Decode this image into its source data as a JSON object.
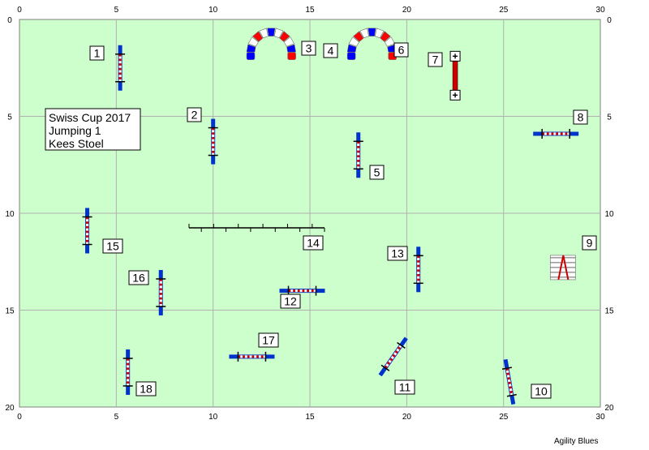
{
  "course_info": [
    "Swiss Cup 2017",
    "Jumping 1",
    "Kees Stoel"
  ],
  "credit": "Agility Blues",
  "axis_x_ticks": [
    "0",
    "5",
    "10",
    "15",
    "20",
    "25",
    "30"
  ],
  "axis_y_ticks": [
    "0",
    "5",
    "10",
    "15",
    "20"
  ],
  "colors": {
    "field": "#ccffcc",
    "grid": "#b0b0b0",
    "pole_red": "#cc0000",
    "pole_blue": "#0033cc",
    "tunnel_red": "#ff0000",
    "tunnel_blue": "#0000ff",
    "tunnel_white": "#ffffff"
  },
  "obstacles": [
    {
      "number": "1",
      "type": "jump",
      "x": 5.2,
      "y": 2.5,
      "angle": 90
    },
    {
      "number": "2",
      "type": "jump",
      "x": 10.0,
      "y": 6.3,
      "angle": 90
    },
    {
      "number": "3",
      "type": "tunnel",
      "x": 13.0,
      "y": 1.7
    },
    {
      "number": "4",
      "type": "tunnel",
      "x": 18.2,
      "y": 1.7
    },
    {
      "number": "5",
      "type": "jump",
      "x": 17.5,
      "y": 7.0,
      "angle": 90
    },
    {
      "number": "6",
      "type": "label_only"
    },
    {
      "number": "7",
      "type": "long_jump",
      "x": 22.5,
      "y": 2.9,
      "angle": 90
    },
    {
      "number": "8",
      "type": "jump",
      "x": 27.7,
      "y": 5.9,
      "angle": 0
    },
    {
      "number": "9",
      "type": "tire",
      "x": 28.0,
      "y": 12.8
    },
    {
      "number": "10",
      "type": "jump",
      "x": 25.3,
      "y": 18.7,
      "angle": 80
    },
    {
      "number": "11",
      "type": "jump",
      "x": 19.3,
      "y": 17.4,
      "angle": -55
    },
    {
      "number": "12",
      "type": "jump",
      "x": 14.6,
      "y": 14.0,
      "angle": 0
    },
    {
      "number": "13",
      "type": "jump",
      "x": 20.6,
      "y": 12.9,
      "angle": 90
    },
    {
      "number": "14",
      "type": "weave_line",
      "x": 12.3,
      "y": 10.7
    },
    {
      "number": "15",
      "type": "jump",
      "x": 3.5,
      "y": 10.9,
      "angle": 90
    },
    {
      "number": "16",
      "type": "jump",
      "x": 7.3,
      "y": 14.1,
      "angle": 90
    },
    {
      "number": "17",
      "type": "jump",
      "x": 12.0,
      "y": 17.4,
      "angle": 0
    },
    {
      "number": "18",
      "type": "jump",
      "x": 5.6,
      "y": 18.2,
      "angle": 90
    }
  ]
}
